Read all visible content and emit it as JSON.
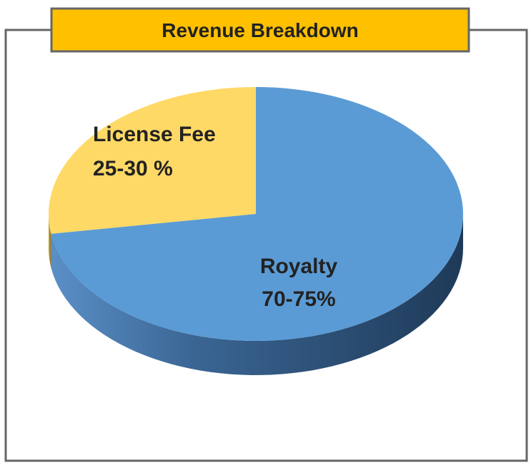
{
  "chart_data": {
    "type": "pie",
    "title": "Revenue Breakdown",
    "categories": [
      "License Fee",
      "Royalty"
    ],
    "values": [
      27.5,
      72.5
    ],
    "value_labels": [
      "25-30 %",
      "70-75%"
    ],
    "colors": [
      "#ffd966",
      "#5b9bd5"
    ]
  }
}
